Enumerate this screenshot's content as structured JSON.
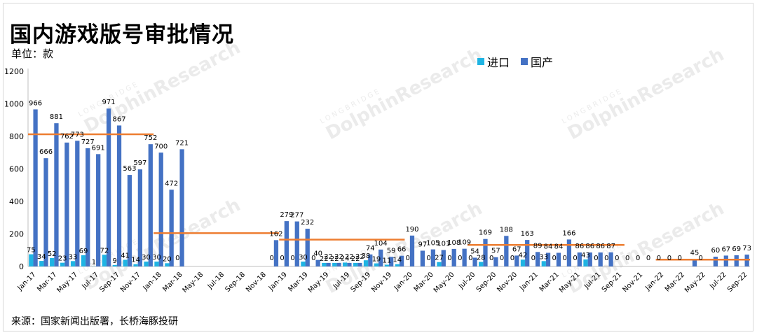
{
  "header": {
    "title": "国内游戏版号审批情况",
    "unit": "单位：款"
  },
  "legend": [
    {
      "label": "进口",
      "color": "#1fb4e3"
    },
    {
      "label": "国产",
      "color": "#4472c4"
    }
  ],
  "source": "来源：国家新闻出版署，长桥海豚投研",
  "watermark": {
    "brand": "DolphinResearch",
    "sub": "LONGBRIDGE"
  },
  "colors": {
    "import": "#1fb4e3",
    "domestic": "#4472c4",
    "avg_line": "#ed7d31"
  },
  "chart_data": {
    "type": "bar",
    "ylim": [
      0,
      1200
    ],
    "yticks": [
      0,
      200,
      400,
      600,
      800,
      1000,
      1200
    ],
    "categories": [
      "Jan-17",
      "Feb-17",
      "Mar-17",
      "Apr-17",
      "May-17",
      "Jun-17",
      "Jul-17",
      "Aug-17",
      "Sep-17",
      "Oct-17",
      "Nov-17",
      "Dec-17",
      "Jan-18",
      "Feb-18",
      "Mar-18",
      "Apr-18",
      "May-18",
      "Jun-18",
      "Jul-18",
      "Aug-18",
      "Sep-18",
      "Oct-18",
      "Nov-18",
      "Dec-18",
      "Jan-19",
      "Feb-19",
      "Mar-19",
      "Apr-19",
      "May-19",
      "Jun-19",
      "Jul-19",
      "Aug-19",
      "Sep-19",
      "Oct-19",
      "Nov-19",
      "Dec-19",
      "Jan-20",
      "Feb-20",
      "Mar-20",
      "Apr-20",
      "May-20",
      "Jun-20",
      "Jul-20",
      "Aug-20",
      "Sep-20",
      "Oct-20",
      "Nov-20",
      "Dec-20",
      "Jan-21",
      "Feb-21",
      "Mar-21",
      "Apr-21",
      "May-21",
      "Jun-21",
      "Jul-21",
      "Aug-21",
      "Sep-21",
      "Oct-21",
      "Nov-21",
      "Dec-21",
      "Jan-22",
      "Feb-22",
      "Mar-22",
      "Apr-22",
      "May-22",
      "Jun-22",
      "Jul-22",
      "Aug-22",
      "Sep-22"
    ],
    "xtick_labels": [
      "Jan-17",
      "Mar-17",
      "May-17",
      "Jul-17",
      "Sep-17",
      "Nov-17",
      "Jan-18",
      "Mar-18",
      "May-18",
      "Jul-18",
      "Sep-18",
      "Nov-18",
      "Jan-19",
      "Mar-19",
      "May-19",
      "Jul-19",
      "Sep-19",
      "Nov-19",
      "Jan-20",
      "Mar-20",
      "May-20",
      "Jul-20",
      "Sep-20",
      "Nov-20",
      "Jan-21",
      "Mar-21",
      "May-21",
      "Jul-21",
      "Sep-21",
      "Nov-21",
      "Jan-22",
      "Mar-22",
      "May-22",
      "Jul-22",
      "Sep-22"
    ],
    "series": [
      {
        "name": "进口",
        "values": [
          75,
          34,
          52,
          23,
          33,
          69,
          1,
          72,
          9,
          41,
          14,
          30,
          30,
          20,
          0,
          0,
          0,
          0,
          0,
          0,
          0,
          0,
          0,
          0,
          0,
          0,
          30,
          0,
          22,
          22,
          24,
          22,
          38,
          19,
          11,
          14,
          0,
          0,
          0,
          27,
          0,
          0,
          0,
          28,
          0,
          0,
          0,
          42,
          0,
          33,
          0,
          0,
          0,
          43,
          0,
          0,
          0,
          0,
          0,
          0,
          0,
          0,
          0,
          0,
          0,
          0,
          0,
          0,
          0
        ],
        "labels": [
          "75",
          "34",
          "52",
          "23",
          "33",
          "69",
          "1",
          "72",
          "9",
          "41",
          "14",
          "30",
          "30",
          "20",
          "0",
          "",
          "",
          "",
          "",
          "",
          "",
          "",
          "",
          "0",
          "0",
          "0",
          "30",
          "0",
          "22",
          "22",
          "24",
          "22",
          "38",
          "19",
          "11",
          "14",
          "0",
          "",
          "0",
          "27",
          "0",
          "0",
          "0",
          "28",
          "0",
          "0",
          "0",
          "42",
          "0",
          "33",
          "0",
          "0",
          "0",
          "43",
          "0",
          "0",
          "0",
          "0",
          "0",
          "0",
          "0",
          "0",
          "0",
          "",
          "0",
          "",
          "",
          "",
          ""
        ]
      },
      {
        "name": "国产",
        "values": [
          966,
          666,
          881,
          762,
          773,
          727,
          691,
          971,
          867,
          563,
          597,
          752,
          700,
          472,
          721,
          0,
          0,
          0,
          0,
          0,
          0,
          0,
          0,
          162,
          279,
          277,
          232,
          40,
          22,
          22,
          22,
          22,
          74,
          104,
          59,
          66,
          190,
          97,
          105,
          101,
          108,
          109,
          54,
          169,
          57,
          188,
          67,
          163,
          89,
          84,
          84,
          166,
          86,
          86,
          86,
          87,
          0,
          0,
          0,
          0,
          0,
          0,
          0,
          45,
          0,
          60,
          67,
          69,
          73
        ],
        "labels": [
          "966",
          "666",
          "881",
          "762",
          "773",
          "727",
          "691",
          "971",
          "867",
          "563",
          "597",
          "752",
          "700",
          "472",
          "721",
          "",
          "",
          "",
          "",
          "",
          "",
          "",
          "",
          "162",
          "279",
          "277",
          "232",
          "40",
          "22",
          "22",
          "22",
          "22",
          "74",
          "104",
          "59",
          "66",
          "190",
          "97",
          "105",
          "101",
          "108",
          "109",
          "54",
          "169",
          "57",
          "188",
          "67",
          "163",
          "89",
          "84",
          "84",
          "166",
          "86",
          "86",
          "86",
          "87",
          "",
          "",
          "",
          "",
          "",
          "",
          "",
          "45",
          "",
          "60",
          "67",
          "69",
          "73"
        ]
      }
    ],
    "averages": [
      {
        "from": "Jan-17",
        "to": "Dec-17",
        "value": 813
      },
      {
        "from": "Jan-18",
        "to": "Dec-18",
        "value": 205
      },
      {
        "from": "Jan-19",
        "to": "Dec-19",
        "value": 165
      },
      {
        "from": "Jul-20",
        "to": "Sep-21",
        "value": 132
      },
      {
        "from": "Jan-22",
        "to": "Sep-22",
        "value": 42
      }
    ]
  }
}
